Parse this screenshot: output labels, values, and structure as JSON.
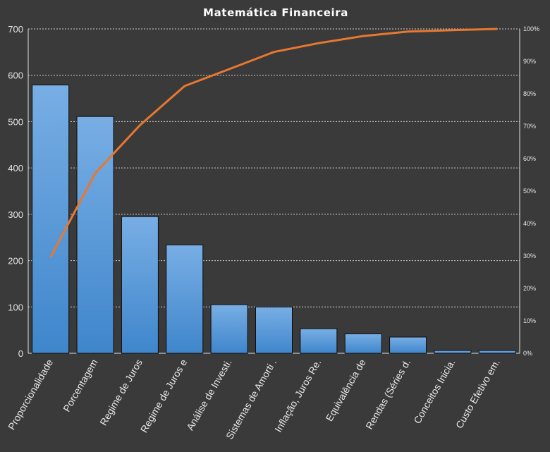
{
  "chart_data": {
    "type": "bar",
    "title": "Matemática  Financeira",
    "categories": [
      "Proporcionalidade",
      "Porcentagem",
      "Regime de Juros",
      "Regime de Juros e",
      "Análise de Investi.",
      "Sistemas de Amorti .",
      "Inflação, Juros Re.",
      "Equivalência de",
      "Rendas (Séries d.",
      "Conceitos Inicia.",
      "Custo Efetivo em."
    ],
    "series": [
      {
        "type": "bar",
        "values": [
          579,
          511,
          295,
          234,
          105,
          100,
          53,
          42,
          35,
          6,
          6
        ]
      },
      {
        "type": "line",
        "axis": "secondary",
        "values": [
          29.6,
          55.5,
          70.3,
          82.4,
          87.6,
          92.9,
          95.6,
          97.8,
          99.2,
          99.6,
          100
        ]
      }
    ],
    "ylim": [
      0,
      700
    ],
    "yticks": [
      "0",
      "100",
      "200",
      "300",
      "400",
      "500",
      "600",
      "700"
    ],
    "y2lim": [
      0,
      100
    ],
    "y2ticks": [
      "0%",
      "10%",
      "20%",
      "30%",
      "40%",
      "50%",
      "60%",
      "70%",
      "80%",
      "90%",
      "100%"
    ],
    "grid": true,
    "colors": {
      "bar_top": "#78aee4",
      "bar_bottom": "#3f86cc",
      "line": "#e8782f",
      "grid": "#cfcfcf",
      "background": "#3a3a3a"
    }
  }
}
